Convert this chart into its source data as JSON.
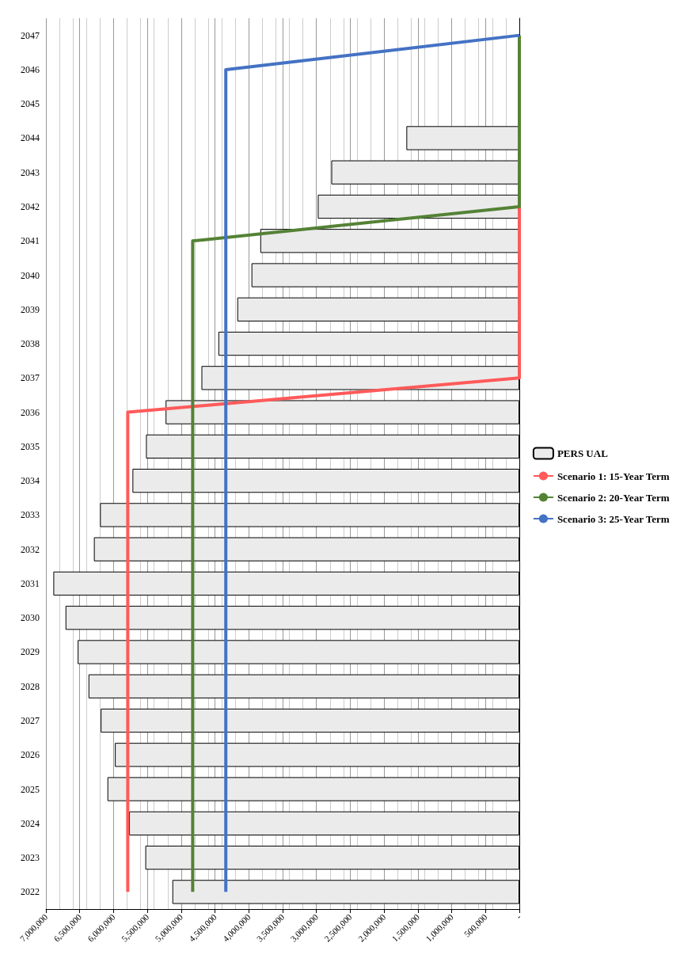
{
  "chart_data": {
    "type": "bar",
    "orientation": "horizontal",
    "categories": [
      "2047",
      "2046",
      "2045",
      "2044",
      "2043",
      "2042",
      "2041",
      "2040",
      "2039",
      "2038",
      "2037",
      "2036",
      "2035",
      "2034",
      "2033",
      "2032",
      "2031",
      "2030",
      "2029",
      "2028",
      "2027",
      "2026",
      "2025",
      "2024",
      "2023",
      "2022"
    ],
    "series": [
      {
        "name": "PERS UAL",
        "color": "#ebebeb",
        "values": [
          0,
          0,
          0,
          1670000,
          2780000,
          2980000,
          3830000,
          3960000,
          4170000,
          4450000,
          4700000,
          5230000,
          5520000,
          5720000,
          6200000,
          6290000,
          6890000,
          6710000,
          6530000,
          6370000,
          6190000,
          5980000,
          6090000,
          5770000,
          5530000,
          5130000
        ]
      },
      {
        "name": "Scenario 1: 15-Year Term",
        "type": "line",
        "color": "#ff5a5a",
        "values": [
          null,
          null,
          null,
          null,
          null,
          0,
          0,
          0,
          0,
          0,
          0,
          5790000,
          5790000,
          5790000,
          5790000,
          5790000,
          5790000,
          5790000,
          5790000,
          5790000,
          5790000,
          5790000,
          5790000,
          5790000,
          5790000,
          5790000
        ]
      },
      {
        "name": "Scenario 2: 20-Year Term",
        "type": "line",
        "color": "#548235",
        "values": [
          0,
          0,
          0,
          0,
          0,
          0,
          4830000,
          4830000,
          4830000,
          4830000,
          4830000,
          4830000,
          4830000,
          4830000,
          4830000,
          4830000,
          4830000,
          4830000,
          4830000,
          4830000,
          4830000,
          4830000,
          4830000,
          4830000,
          4830000,
          4830000
        ]
      },
      {
        "name": "Scenario 3: 25-Year Term",
        "type": "line",
        "color": "#4472c4",
        "values": [
          0,
          4340000,
          4340000,
          4340000,
          4340000,
          4340000,
          4340000,
          4340000,
          4340000,
          4340000,
          4340000,
          4340000,
          4340000,
          4340000,
          4340000,
          4340000,
          4340000,
          4340000,
          4340000,
          4340000,
          4340000,
          4340000,
          4340000,
          4340000,
          4340000,
          4340000
        ]
      }
    ],
    "xlim": [
      7000000,
      0
    ],
    "xticks": [
      {
        "value": 7000000,
        "label": "7,000,000"
      },
      {
        "value": 6500000,
        "label": "6,500,000"
      },
      {
        "value": 6000000,
        "label": "6,000,000"
      },
      {
        "value": 5500000,
        "label": "5,500,000"
      },
      {
        "value": 5000000,
        "label": "5,000,000"
      },
      {
        "value": 4500000,
        "label": "4,500,000"
      },
      {
        "value": 4000000,
        "label": "4,000,000"
      },
      {
        "value": 3500000,
        "label": "3,500,000"
      },
      {
        "value": 3000000,
        "label": "3,000,000"
      },
      {
        "value": 2500000,
        "label": "2,500,000"
      },
      {
        "value": 2000000,
        "label": "2,000,000"
      },
      {
        "value": 1500000,
        "label": "1,500,000"
      },
      {
        "value": 1000000,
        "label": "1,000,000"
      },
      {
        "value": 500000,
        "label": "500,000"
      },
      {
        "value": 0,
        "label": "-"
      }
    ],
    "grid": "x",
    "legend": "right",
    "marker": "none",
    "line_style": "solid"
  }
}
